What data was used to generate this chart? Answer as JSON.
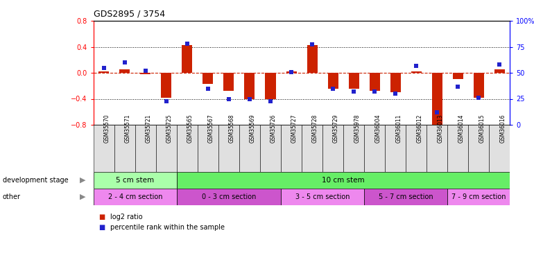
{
  "title": "GDS2895 / 3754",
  "samples": [
    "GSM35570",
    "GSM35571",
    "GSM35721",
    "GSM35725",
    "GSM35565",
    "GSM35567",
    "GSM35568",
    "GSM35569",
    "GSM35726",
    "GSM35727",
    "GSM35728",
    "GSM35729",
    "GSM35978",
    "GSM36004",
    "GSM36011",
    "GSM36012",
    "GSM36013",
    "GSM36014",
    "GSM36015",
    "GSM36016"
  ],
  "log2_ratio": [
    0.02,
    0.05,
    -0.02,
    -0.38,
    0.43,
    -0.17,
    -0.28,
    -0.4,
    -0.4,
    0.02,
    0.43,
    -0.24,
    -0.25,
    -0.28,
    -0.3,
    0.02,
    -0.85,
    -0.1,
    -0.38,
    0.05
  ],
  "pct_rank": [
    55,
    60,
    52,
    23,
    78,
    35,
    25,
    25,
    23,
    51,
    77,
    35,
    32,
    32,
    30,
    57,
    12,
    37,
    26,
    58
  ],
  "ylim_left": [
    -0.8,
    0.8
  ],
  "ylim_right": [
    0,
    100
  ],
  "yticks_left": [
    -0.8,
    -0.4,
    0.0,
    0.4,
    0.8
  ],
  "yticks_right": [
    0,
    25,
    50,
    75,
    100
  ],
  "ytick_right_labels": [
    "0",
    "25",
    "50",
    "75",
    "100%"
  ],
  "bar_color": "#cc2200",
  "dot_color": "#2222cc",
  "hline_color": "#cc2200",
  "dot_size": 18,
  "dev_stage_groups": [
    {
      "label": "5 cm stem",
      "start": 0,
      "end": 3,
      "color": "#aaffaa"
    },
    {
      "label": "10 cm stem",
      "start": 4,
      "end": 19,
      "color": "#66ee66"
    }
  ],
  "other_groups": [
    {
      "label": "2 - 4 cm section",
      "start": 0,
      "end": 3,
      "color": "#ee88ee"
    },
    {
      "label": "0 - 3 cm section",
      "start": 4,
      "end": 8,
      "color": "#cc55cc"
    },
    {
      "label": "3 - 5 cm section",
      "start": 9,
      "end": 12,
      "color": "#ee88ee"
    },
    {
      "label": "5 - 7 cm section",
      "start": 13,
      "end": 16,
      "color": "#cc55cc"
    },
    {
      "label": "7 - 9 cm section",
      "start": 17,
      "end": 19,
      "color": "#ee88ee"
    }
  ],
  "legend_red": "log2 ratio",
  "legend_blue": "percentile rank within the sample",
  "dev_label": "development stage",
  "other_label": "other",
  "background_color": "#ffffff"
}
